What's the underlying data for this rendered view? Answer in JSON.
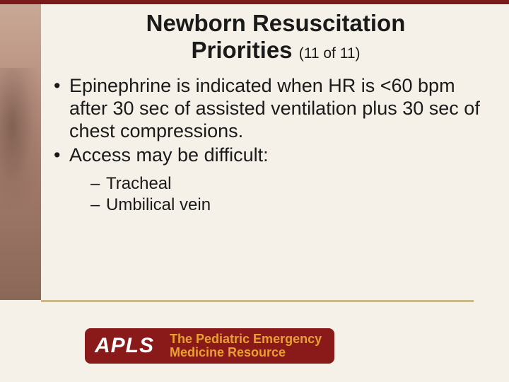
{
  "colors": {
    "background": "#f5f1e8",
    "accent_bar": "#7a1a1a",
    "footer_line": "#c9b88a",
    "logo_bg": "#8a1a1a",
    "logo_text": "#e8a030",
    "body_text": "#1a1a1a"
  },
  "title": {
    "line1": "Newborn Resuscitation",
    "line2": "Priorities",
    "counter": "(11 of 11)"
  },
  "bullets": [
    {
      "text": "Epinephrine is indicated when HR is <60 bpm after 30 sec of assisted ventilation plus 30 sec of chest compressions."
    },
    {
      "text": "Access may be difficult:",
      "sub": [
        "Tracheal",
        "Umbilical vein"
      ]
    }
  ],
  "logo": {
    "badge": "APLS",
    "line1": "The Pediatric Emergency",
    "line2": "Medicine Resource"
  }
}
